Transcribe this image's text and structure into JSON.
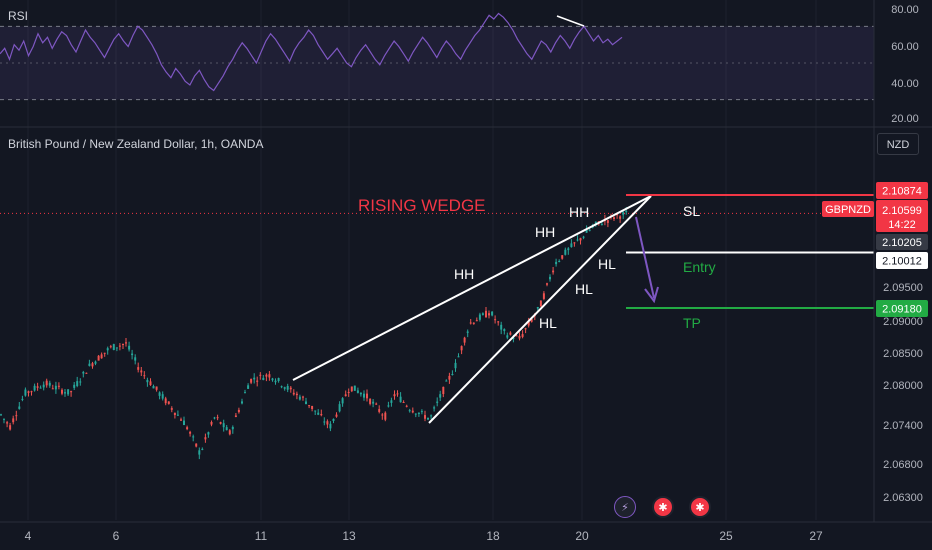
{
  "colors": {
    "background": "#131722",
    "up": "#26a69a",
    "down": "#ef5350",
    "rsi_line": "#7e57c2",
    "rsi_band": "#7e57c2",
    "wedge_lines": "#ffffff",
    "arrow": "#7e57c2",
    "sl_line": "#f23645",
    "entry_line": "#ffffff",
    "tp_line": "#22ab44",
    "current_price_line": "#f23645"
  },
  "rsi": {
    "label": "RSI",
    "axis_ticks": [
      "80.00",
      "60.00",
      "40.00",
      "20.00"
    ]
  },
  "main": {
    "title": "British Pound / New Zealand Dollar, 1h, OANDA",
    "currency_button": "NZD",
    "pattern_label": "RISING WEDGE",
    "price_ticks": [
      "2.09500",
      "2.09000",
      "2.08500",
      "2.08000",
      "2.07400",
      "2.06800",
      "2.06300"
    ],
    "x_ticks": [
      "4",
      "6",
      "11",
      "13",
      "18",
      "20",
      "25",
      "27"
    ],
    "price_labels": {
      "sl_price": "2.10874",
      "symbol": "GBPNZD",
      "current_price": "2.10599",
      "countdown": "14:22",
      "prev_price": "2.10205",
      "entry_price": "2.10012",
      "tp_price": "2.09180"
    },
    "annotations": {
      "hh": [
        "HH",
        "HH",
        "HH"
      ],
      "hl": [
        "HL",
        "HL",
        "HL"
      ],
      "sl": "SL",
      "entry": "Entry",
      "tp": "TP"
    }
  },
  "chart_data": [
    {
      "type": "line",
      "name": "RSI",
      "ylim": [
        20,
        80
      ],
      "bands": [
        30,
        70
      ],
      "y_ticks": [
        80,
        60,
        40,
        20
      ],
      "values": [
        55,
        58,
        52,
        60,
        57,
        62,
        54,
        59,
        66,
        61,
        64,
        58,
        63,
        67,
        65,
        60,
        56,
        62,
        68,
        64,
        61,
        57,
        53,
        58,
        63,
        66,
        62,
        59,
        65,
        70,
        68,
        64,
        60,
        55,
        49,
        45,
        42,
        47,
        44,
        40,
        38,
        43,
        46,
        41,
        37,
        35,
        39,
        43,
        48,
        52,
        57,
        61,
        58,
        54,
        50,
        56,
        62,
        66,
        63,
        59,
        55,
        51,
        57,
        61,
        64,
        68,
        65,
        60,
        56,
        52,
        55,
        58,
        54,
        50,
        48,
        53,
        57,
        60,
        56,
        52,
        49,
        54,
        58,
        62,
        59,
        55,
        51,
        56,
        60,
        64,
        61,
        57,
        53,
        58,
        62,
        59,
        55,
        52,
        57,
        61,
        65,
        68,
        72,
        76,
        74,
        77,
        75,
        72,
        68,
        63,
        59,
        55,
        52,
        57,
        62,
        60,
        56,
        61,
        65,
        62,
        58,
        63,
        67,
        70,
        66,
        62,
        65,
        61,
        63,
        60,
        62,
        64
      ]
    },
    {
      "type": "candlestick",
      "name": "GBPNZD 1h",
      "ylim": [
        2.062,
        2.1115
      ],
      "x_tick_labels": [
        "4",
        "6",
        "11",
        "13",
        "18",
        "20",
        "25",
        "27"
      ],
      "last_close": 2.10599,
      "levels": {
        "stop_loss": 2.10874,
        "entry": 2.10012,
        "take_profit": 2.0918
      }
    }
  ]
}
